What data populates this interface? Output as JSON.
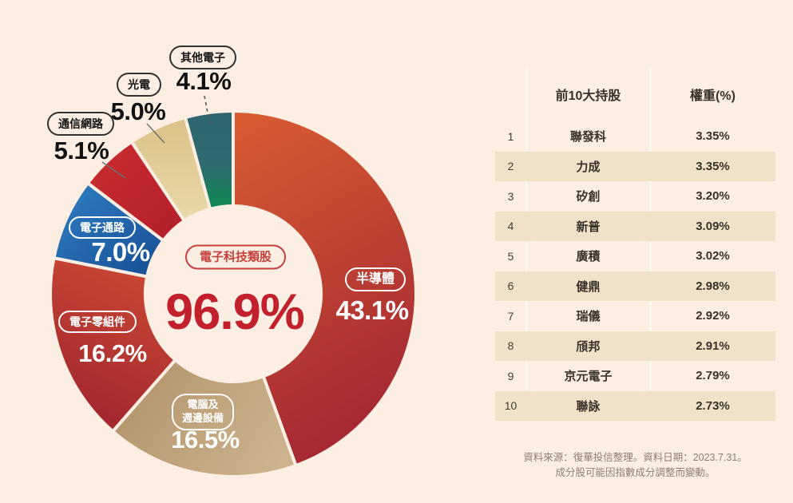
{
  "page": {
    "background": "#fdeee3"
  },
  "chart_data": {
    "type": "donut",
    "unit": "%",
    "center": {
      "category": "電子科技類股",
      "total": "96.9%"
    },
    "slices": [
      {
        "key": "semiconductor",
        "name": "半導體",
        "pct_label": "43.1%",
        "value": 43.1,
        "color_from": "#d65b31",
        "color_to": "#a32633"
      },
      {
        "key": "computer-peripherals",
        "name": "電腦及週邊設備",
        "label_line1": "電腦及",
        "label_line2": "週邊設備",
        "pct_label": "16.5%",
        "value": 16.5,
        "color_from": "#b2946b",
        "color_to": "#cdb48d"
      },
      {
        "key": "electronic-components",
        "name": "電子零組件",
        "pct_label": "16.2%",
        "value": 16.2,
        "color_from": "#cc4834",
        "color_to": "#9e242e"
      },
      {
        "key": "electronic-distribution",
        "name": "電子通路",
        "pct_label": "7.0%",
        "value": 7.0,
        "color_from": "#3180c4",
        "color_to": "#164d93"
      },
      {
        "key": "communication-network",
        "name": "通信網路",
        "pct_label": "5.1%",
        "value": 5.1,
        "color_from": "#cb2e2e",
        "color_to": "#b21e29"
      },
      {
        "key": "optoelectronics",
        "name": "光電",
        "pct_label": "5.0%",
        "value": 5.0,
        "color_from": "#dbc187",
        "color_to": "#e9d9aa"
      },
      {
        "key": "other-electronics",
        "name": "其他電子",
        "pct_label": "4.1%",
        "value": 4.1,
        "color_from": "#30656f",
        "color_mid": "#2e6b70",
        "color_to": "#0e8a51"
      }
    ]
  },
  "table": {
    "headers": {
      "rank": "",
      "name": "前10大持股",
      "weight": "權重(%)"
    },
    "rows": [
      {
        "rank": "1",
        "name": "聯發科",
        "weight": "3.35%"
      },
      {
        "rank": "2",
        "name": "力成",
        "weight": "3.35%"
      },
      {
        "rank": "3",
        "name": "矽創",
        "weight": "3.20%"
      },
      {
        "rank": "4",
        "name": "新普",
        "weight": "3.09%"
      },
      {
        "rank": "5",
        "name": "廣積",
        "weight": "3.02%"
      },
      {
        "rank": "6",
        "name": "健鼎",
        "weight": "2.98%"
      },
      {
        "rank": "7",
        "name": "瑞儀",
        "weight": "2.92%"
      },
      {
        "rank": "8",
        "name": "頎邦",
        "weight": "2.91%"
      },
      {
        "rank": "9",
        "name": "京元電子",
        "weight": "2.79%"
      },
      {
        "rank": "10",
        "name": "聯詠",
        "weight": "2.73%"
      }
    ]
  },
  "footer": {
    "line1": "資料來源：復華投信整理。資料日期：2023.7.31。",
    "line2": "成分股可能因指數成分調整而變動。"
  }
}
